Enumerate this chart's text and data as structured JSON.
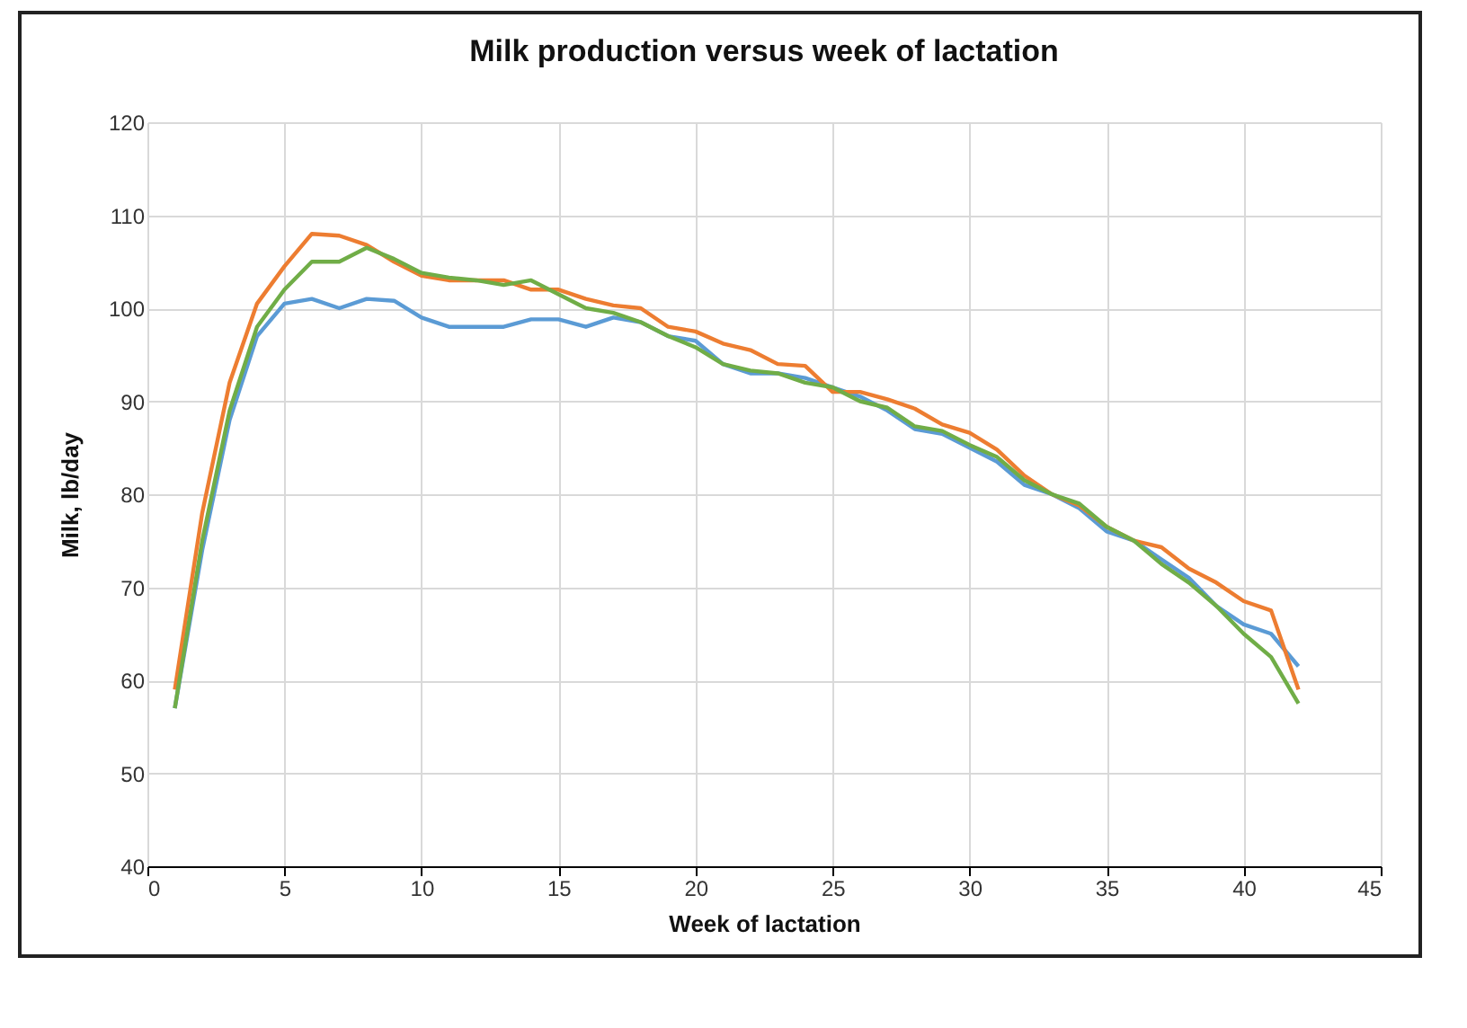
{
  "chart_data": {
    "type": "line",
    "title": "Milk production versus week of lactation",
    "xlabel": "Week of lactation",
    "ylabel": "Milk, lb/day",
    "x": [
      1,
      2,
      3,
      4,
      5,
      6,
      7,
      8,
      9,
      10,
      11,
      12,
      13,
      14,
      15,
      16,
      17,
      18,
      19,
      20,
      21,
      22,
      23,
      24,
      25,
      26,
      27,
      28,
      29,
      30,
      31,
      32,
      33,
      34,
      35,
      36,
      37,
      38,
      39,
      40,
      41,
      42
    ],
    "series": [
      {
        "color": "#5b9bd5",
        "values": [
          57,
          74,
          88,
          97,
          100.5,
          101,
          100,
          101,
          100.8,
          99,
          98,
          98,
          98,
          98.8,
          98.8,
          98,
          99,
          98.5,
          97,
          96.5,
          94,
          93,
          93,
          92.5,
          91.5,
          90.5,
          89,
          87,
          86.5,
          85,
          83.5,
          81,
          80,
          78.5,
          76,
          75,
          73,
          71,
          68,
          66,
          65,
          61.5
        ]
      },
      {
        "color": "#ed7d31",
        "values": [
          59,
          78,
          92,
          100.5,
          104.5,
          108,
          107.8,
          106.8,
          105,
          103.5,
          103,
          103,
          103,
          102,
          102,
          101,
          100.3,
          100,
          98,
          97.5,
          96.2,
          95.5,
          94,
          93.8,
          91,
          91,
          90.2,
          89.2,
          87.5,
          86.6,
          84.8,
          82,
          80,
          78.8,
          76.5,
          75,
          74.3,
          72,
          70.5,
          68.5,
          67.5,
          59
        ]
      },
      {
        "color": "#70ad47",
        "values": [
          57,
          75,
          89,
          98,
          102,
          105,
          105,
          106.5,
          105.3,
          103.8,
          103.3,
          103,
          102.5,
          103,
          101.5,
          100,
          99.5,
          98.5,
          97,
          95.8,
          94,
          93.3,
          93,
          92,
          91.5,
          90,
          89.3,
          87.3,
          86.8,
          85.3,
          84,
          81.5,
          80,
          79,
          76.5,
          75,
          72.5,
          70.5,
          68,
          65,
          62.5,
          57.5
        ]
      }
    ],
    "xlim": [
      0,
      45
    ],
    "xticks": [
      0,
      5,
      10,
      15,
      20,
      25,
      30,
      35,
      40,
      45
    ],
    "ylim": [
      40,
      120
    ],
    "yticks": [
      40,
      50,
      60,
      70,
      80,
      90,
      100,
      110,
      120
    ],
    "grid": true
  }
}
